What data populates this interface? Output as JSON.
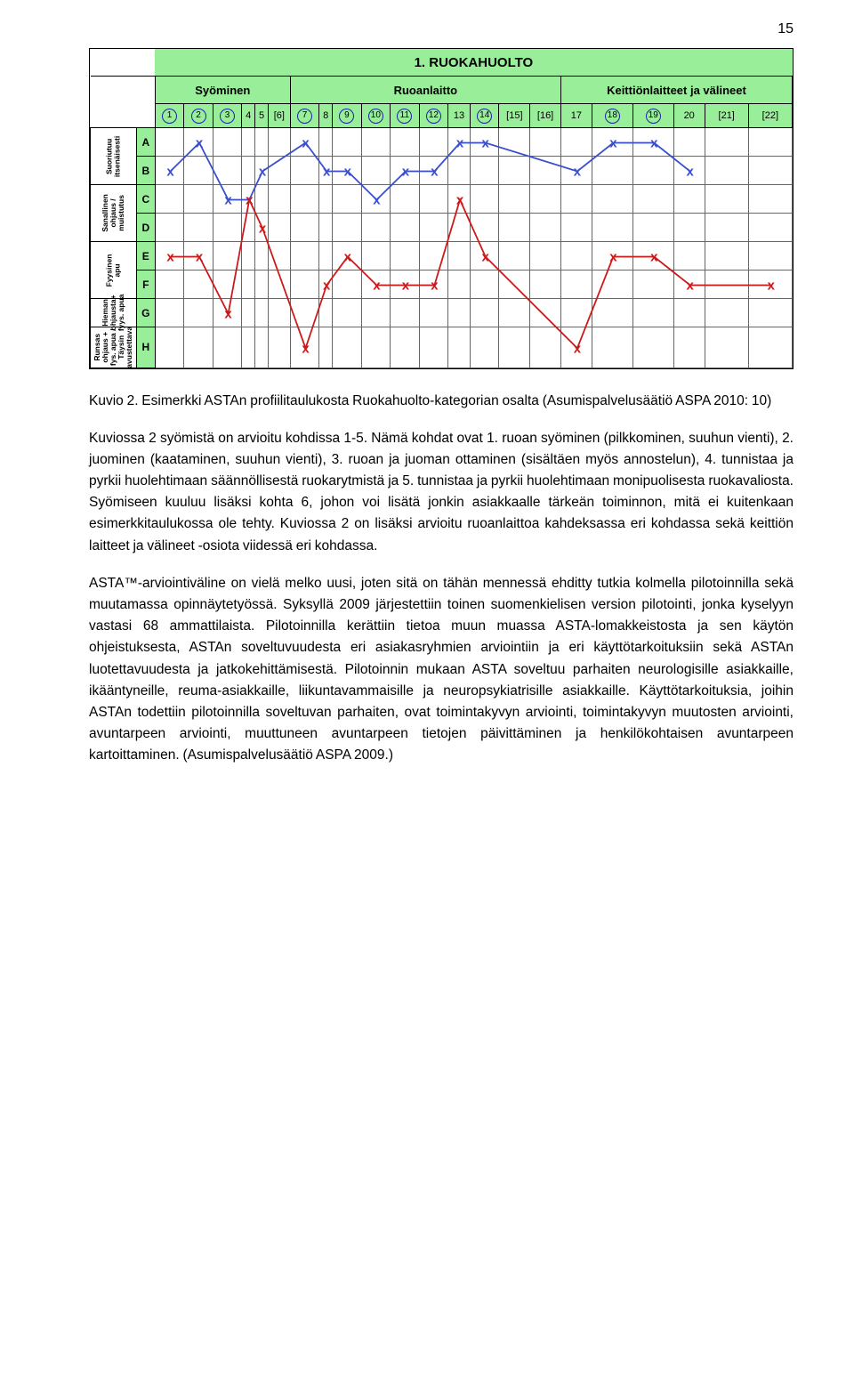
{
  "page_number": "15",
  "chart": {
    "title": "1. RUOKAHUOLTO",
    "title_bg": "#99ee99",
    "categories": [
      {
        "label": "Syöminen",
        "cols": 6
      },
      {
        "label": "Ruoanlaitto",
        "cols": 10
      },
      {
        "label": "Keittiönlaitteet ja välineet",
        "cols": 6
      }
    ],
    "cat_bg": "#99ee99",
    "col_numbers": [
      "1",
      "2",
      "3",
      "4",
      "5",
      "[6]",
      "7",
      "8",
      "9",
      "10",
      "11",
      "12",
      "13",
      "14",
      "[15]",
      "[16]",
      "17",
      "18",
      "19",
      "20",
      "[21]",
      "[22]"
    ],
    "circled_cols": [
      1,
      2,
      3,
      7,
      9,
      10,
      11,
      12,
      14,
      18,
      19
    ],
    "row_letters": [
      "A",
      "B",
      "C",
      "D",
      "E",
      "F",
      "G",
      "H"
    ],
    "row_bg": "#99ee99",
    "y_axis_groups": [
      {
        "label_lines": [
          "Suoriutuu",
          "itsenäisesti"
        ],
        "span": 2
      },
      {
        "label_lines": [
          "Sanallinen",
          "ohjaus /",
          "muistutus"
        ],
        "span": 2
      },
      {
        "label_lines": [
          "Fyysinen",
          "apu"
        ],
        "span": 2
      },
      {
        "label_lines": [
          "Hieman",
          "ohjausta+",
          "fyys. apua"
        ],
        "span": 1
      },
      {
        "label_lines": [
          "Runsas ohjaus +",
          "fys. apua /",
          "Täysin",
          "avustettava"
        ],
        "span": 1
      }
    ],
    "series": [
      {
        "name": "blue",
        "color": "#3a4fcd",
        "points": [
          [
            1,
            "B"
          ],
          [
            2,
            "A"
          ],
          [
            3,
            "C"
          ],
          [
            4,
            "C"
          ],
          [
            5,
            "B"
          ],
          [
            7,
            "A"
          ],
          [
            8,
            "B"
          ],
          [
            9,
            "B"
          ],
          [
            10,
            "C"
          ],
          [
            11,
            "B"
          ],
          [
            12,
            "B"
          ],
          [
            13,
            "A"
          ],
          [
            14,
            "A"
          ],
          [
            17,
            "B"
          ],
          [
            18,
            "A"
          ],
          [
            19,
            "A"
          ],
          [
            20,
            "B"
          ]
        ]
      },
      {
        "name": "red",
        "color": "#cc1a1a",
        "points": [
          [
            1,
            "E"
          ],
          [
            2,
            "E"
          ],
          [
            3,
            "G"
          ],
          [
            4,
            "C"
          ],
          [
            5,
            "D"
          ],
          [
            7,
            "H"
          ],
          [
            8,
            "F"
          ],
          [
            9,
            "E"
          ],
          [
            10,
            "F"
          ],
          [
            11,
            "F"
          ],
          [
            12,
            "F"
          ],
          [
            13,
            "C"
          ],
          [
            14,
            "E"
          ],
          [
            17,
            "H"
          ],
          [
            18,
            "E"
          ],
          [
            19,
            "E"
          ],
          [
            20,
            "F"
          ],
          [
            22,
            "F"
          ]
        ]
      }
    ],
    "font_family": "Arial",
    "bg": "#ffffff",
    "grid_color": "#666666"
  },
  "caption": "Kuvio 2. Esimerkki ASTAn profiilitaulukosta Ruokahuolto-kategorian osalta (Asumispalvelusäätiö ASPA 2010: 10)",
  "para1": "Kuviossa 2 syömistä on arvioitu kohdissa 1-5. Nämä kohdat ovat 1. ruoan syöminen (pilkkominen, suuhun vienti), 2. juominen (kaataminen, suuhun vienti), 3. ruoan ja juoman ottaminen (sisältäen myös annostelun), 4. tunnistaa ja pyrkii huolehtimaan säännöllisestä ruokarytmistä ja 5. tunnistaa ja pyrkii huolehtimaan monipuolisesta ruokavaliosta. Syömiseen kuuluu lisäksi kohta 6, johon voi lisätä jonkin asiakkaalle tärkeän toiminnon, mitä ei kuitenkaan esimerkkitaulukossa ole tehty. Kuviossa 2 on lisäksi arvioitu ruoanlaittoa kahdeksassa eri kohdassa sekä keittiön laitteet ja välineet -osiota viidessä eri kohdassa.",
  "para2": "ASTA™-arviointiväline on vielä melko uusi, joten sitä on tähän mennessä ehditty tutkia kolmella pilotoinnilla sekä muutamassa opinnäytetyössä. Syksyllä 2009 järjestettiin toinen suomenkielisen version pilotointi, jonka kyselyyn vastasi 68 ammattilaista. Pilotoinnilla kerättiin tietoa muun muassa ASTA-lomakkeistosta ja sen käytön ohjeistuksesta, ASTAn soveltuvuudesta eri asiakasryhmien arviointiin ja eri käyttötarkoituksiin sekä ASTAn luotettavuudesta ja jatkokehittämisestä. Pilotoinnin mukaan ASTA soveltuu parhaiten neurologisille asiakkaille, ikääntyneille, reuma-asiakkaille, liikuntavammaisille ja neuropsykiatrisille asiakkaille. Käyttötarkoituksia, joihin ASTAn todettiin pilotoinnilla soveltuvan parhaiten, ovat toimintakyvyn arviointi, toimintakyvyn muutosten arviointi, avuntarpeen arviointi, muuttuneen avuntarpeen tietojen päivittäminen ja henkilökohtaisen avuntarpeen kartoittaminen. (Asumispalvelusäätiö ASPA 2009.)"
}
